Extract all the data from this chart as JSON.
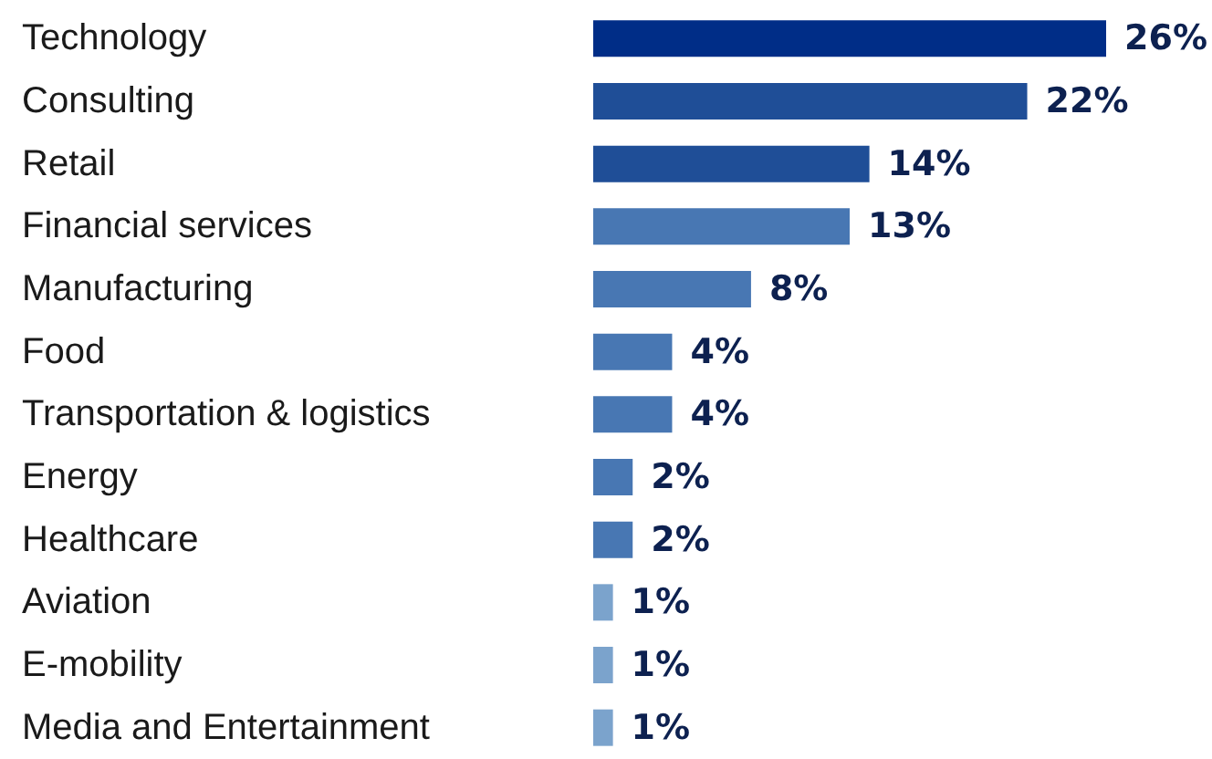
{
  "chart_data": {
    "type": "bar",
    "categories": [
      "Technology",
      "Consulting",
      "Retail",
      "Financial services",
      "Manufacturing",
      "Food",
      "Transportation & logistics",
      "Energy",
      "Healthcare",
      "Aviation",
      "E-mobility",
      "Media and Entertainment"
    ],
    "values": [
      26,
      22,
      14,
      13,
      8,
      4,
      4,
      2,
      2,
      1,
      1,
      1
    ],
    "value_labels": [
      "26%",
      "22%",
      "14%",
      "13%",
      "8%",
      "4%",
      "4%",
      "2%",
      "2%",
      "1%",
      "1%",
      "1%"
    ],
    "colors": [
      "#002d87",
      "#1f4e97",
      "#1f4e97",
      "#4877b3",
      "#4877b3",
      "#4877b3",
      "#4877b3",
      "#4877b3",
      "#4877b3",
      "#7ba3cc",
      "#7ba3cc",
      "#7ba3cc"
    ],
    "orientation": "horizontal"
  }
}
